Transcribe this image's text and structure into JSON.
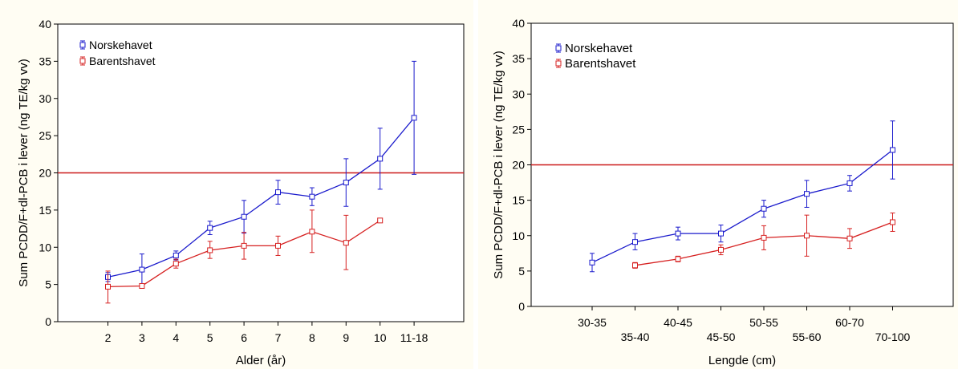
{
  "colors": {
    "norskehavet": "#1a1acc",
    "barentshavet": "#d62020",
    "reference": "#cc1a1a",
    "axis": "#000000"
  },
  "chart_data": [
    {
      "type": "line",
      "xlabel": "Alder (år)",
      "ylabel": "Sum PCDD/F+dl-PCB i lever (ng TE/kg vv)",
      "ylim": [
        0,
        40
      ],
      "yticks": [
        0,
        5,
        10,
        15,
        20,
        25,
        30,
        35,
        40
      ],
      "categories": [
        "2",
        "3",
        "4",
        "5",
        "6",
        "7",
        "8",
        "9",
        "10",
        "11-18"
      ],
      "reference_line": 20,
      "legend_position": "top-left",
      "grid": false,
      "series": [
        {
          "name": "Norskehavet",
          "values": [
            6.0,
            7.0,
            8.9,
            12.6,
            14.1,
            17.4,
            16.8,
            18.7,
            21.9,
            27.4
          ],
          "lower": [
            5.4,
            4.9,
            8.3,
            11.7,
            11.9,
            15.8,
            15.6,
            15.5,
            17.8,
            19.8
          ],
          "upper": [
            6.6,
            9.1,
            9.5,
            13.5,
            16.3,
            19.0,
            18.0,
            21.9,
            26.0,
            35.0
          ]
        },
        {
          "name": "Barentshavet",
          "values": [
            4.7,
            4.8,
            7.8,
            9.6,
            10.2,
            10.2,
            12.1,
            10.6,
            13.6,
            null
          ],
          "lower": [
            2.5,
            4.5,
            7.2,
            8.5,
            8.4,
            8.9,
            9.3,
            7.0,
            13.6,
            null
          ],
          "upper": [
            6.8,
            5.1,
            8.4,
            10.8,
            12.0,
            11.5,
            15.0,
            14.3,
            13.6,
            null
          ]
        }
      ]
    },
    {
      "type": "line",
      "xlabel": "Lengde (cm)",
      "ylabel": "Sum PCDD/F+dl-PCB i lever (ng TE/kg vv)",
      "ylim": [
        0,
        40
      ],
      "yticks": [
        0,
        5,
        10,
        15,
        20,
        25,
        30,
        35,
        40
      ],
      "categories": [
        "30-35",
        "35-40",
        "40-45",
        "45-50",
        "50-55",
        "55-60",
        "60-70",
        "70-100"
      ],
      "reference_line": 20,
      "legend_position": "top-left",
      "grid": false,
      "series": [
        {
          "name": "Norskehavet",
          "values": [
            6.2,
            9.1,
            10.3,
            10.3,
            13.8,
            15.9,
            17.4,
            22.1
          ],
          "lower": [
            4.9,
            8.0,
            9.4,
            9.1,
            12.6,
            14.0,
            16.3,
            18.0
          ],
          "upper": [
            7.5,
            10.3,
            11.2,
            11.5,
            15.0,
            17.8,
            18.5,
            26.2
          ]
        },
        {
          "name": "Barentshavet",
          "values": [
            null,
            5.8,
            6.7,
            8.0,
            9.7,
            10.0,
            9.6,
            11.9
          ],
          "lower": [
            null,
            5.4,
            6.3,
            7.3,
            8.0,
            7.1,
            8.2,
            10.6
          ],
          "upper": [
            null,
            6.2,
            7.1,
            8.7,
            11.4,
            12.9,
            11.0,
            13.2
          ]
        }
      ]
    }
  ]
}
